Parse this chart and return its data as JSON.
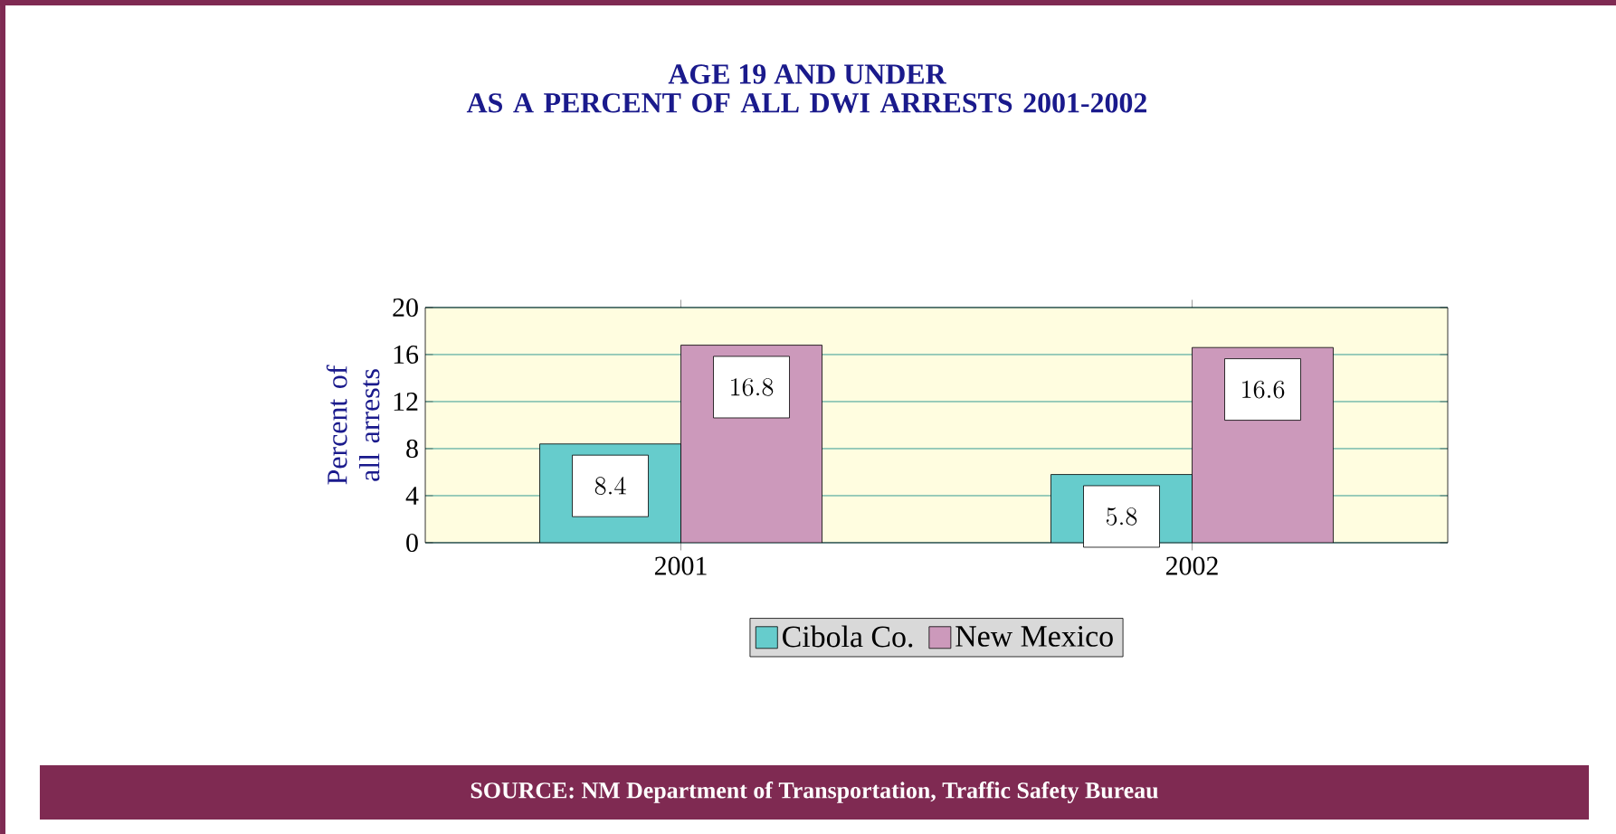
{
  "chart_data": {
    "type": "bar",
    "title": "AGE 19 AND UNDER",
    "subtitle": "AS A PERCENT OF ALL DWI ARRESTS 2001-2002",
    "ylabel": "Percent of all arrests",
    "categories": [
      "2001",
      "2002"
    ],
    "series": [
      {
        "name": "Cibola Co.",
        "color": "#66cccc",
        "values": [
          8.4,
          5.8
        ]
      },
      {
        "name": "New Mexico",
        "color": "#cc99bb",
        "values": [
          16.8,
          16.6
        ]
      }
    ],
    "ylim": [
      0,
      20
    ],
    "yticks": [
      0,
      4,
      8,
      12,
      16,
      20
    ],
    "grid": "y",
    "legend": "bottom",
    "data_labels": true,
    "annotations": [
      "SOURCE:  NM Department of Transportation, Traffic Safety Bureau"
    ]
  }
}
